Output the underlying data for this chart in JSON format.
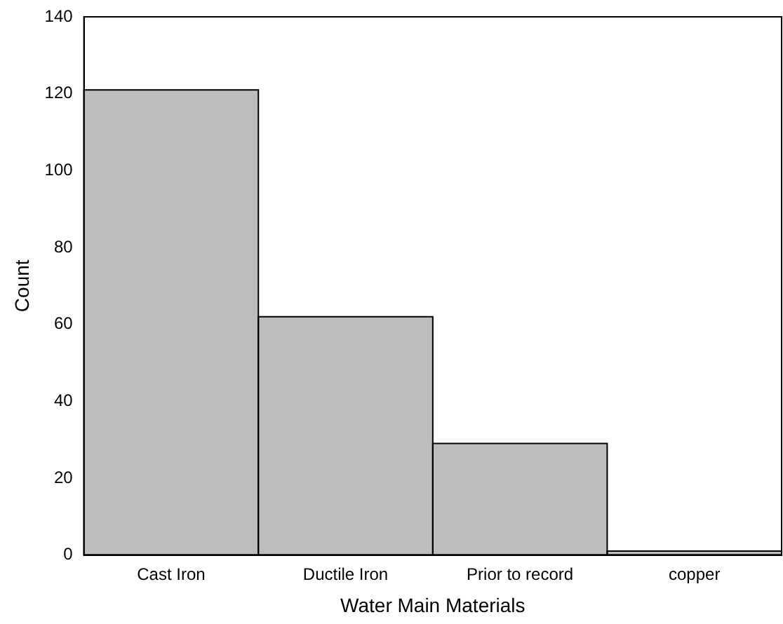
{
  "chart_data": {
    "type": "bar",
    "xlabel": "Water Main Materials",
    "ylabel": "Count",
    "categories": [
      "Cast Iron",
      "Ductile Iron",
      "Prior to record",
      "copper"
    ],
    "values": [
      121,
      62,
      29,
      1
    ],
    "color": "#bdbdbd",
    "ylim": [
      0,
      140
    ],
    "yticks": [
      0,
      20,
      40,
      60,
      80,
      100,
      120,
      140
    ],
    "grid": false
  }
}
